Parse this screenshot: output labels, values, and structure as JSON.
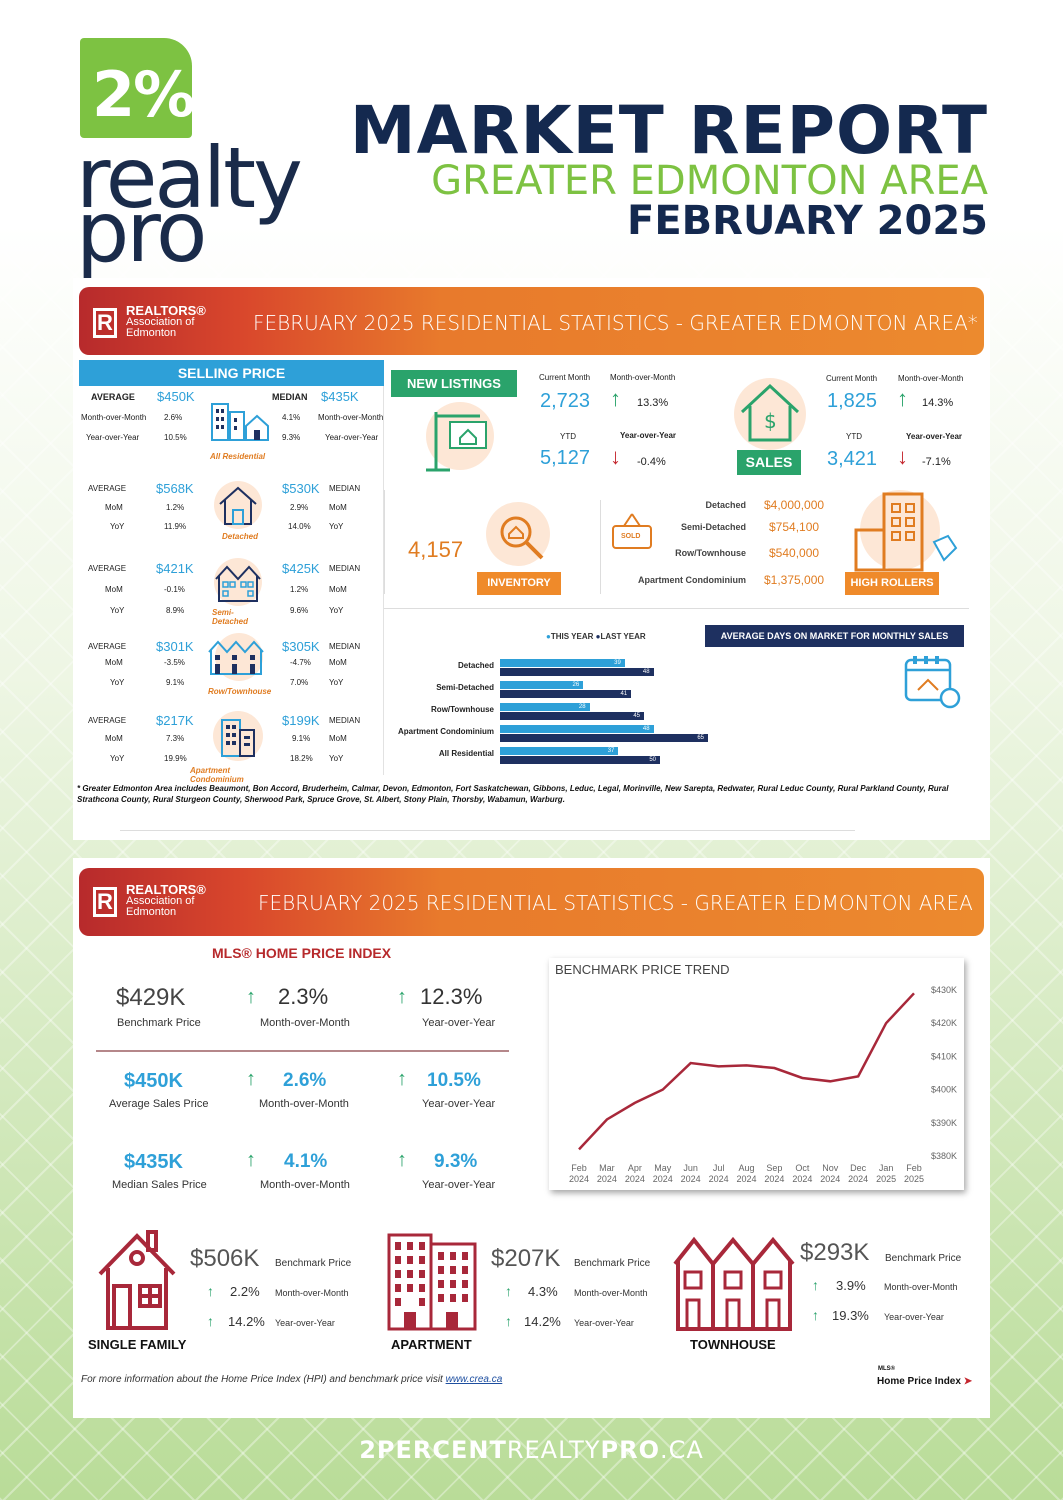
{
  "header": {
    "logo_pct": "2%",
    "logo_word1": "realty",
    "logo_word2": "pro",
    "title": "MARKET  REPORT",
    "subtitle": "GREATER EDMONTON AREA",
    "date": "FEBRUARY 2025"
  },
  "realtors": {
    "box": "R",
    "line1": "REALTORS®",
    "line2": "Association of",
    "line3": "Edmonton"
  },
  "panel1": {
    "banner": "FEBRUARY 2025 RESIDENTIAL STATISTICS - GREATER EDMONTON AREA*",
    "selling_price": "SELLING PRICE",
    "all_res": {
      "avg_lbl": "AVERAGE",
      "avg": "$450K",
      "med_lbl": "MEDIAN",
      "med": "$435K",
      "mom_lbl": "Month-over-Month",
      "yoy_lbl": "Year-over-Year",
      "avg_mom": "2.6%",
      "avg_yoy": "10.5%",
      "med_mom": "4.1%",
      "med_yoy": "9.3%",
      "caption": "All Residential"
    },
    "types": [
      {
        "avg": "$568K",
        "med": "$530K",
        "avg_mom": "1.2%",
        "avg_yoy": "11.9%",
        "med_mom": "2.9%",
        "med_yoy": "14.0%",
        "caption": "Detached"
      },
      {
        "avg": "$421K",
        "med": "$425K",
        "avg_mom": "-0.1%",
        "avg_yoy": "8.9%",
        "med_mom": "1.2%",
        "med_yoy": "9.6%",
        "caption": "Semi-Detached"
      },
      {
        "avg": "$301K",
        "med": "$305K",
        "avg_mom": "-3.5%",
        "avg_yoy": "9.1%",
        "med_mom": "-4.7%",
        "med_yoy": "7.0%",
        "caption": "Row/Townhouse"
      },
      {
        "avg": "$217K",
        "med": "$199K",
        "avg_mom": "7.3%",
        "avg_yoy": "19.9%",
        "med_mom": "9.1%",
        "med_yoy": "18.2%",
        "caption": "Apartment Condominium"
      }
    ],
    "avg_lbl": "AVERAGE",
    "med_lbl": "MEDIAN",
    "mom": "MoM",
    "yoy": "YoY",
    "new_listings": {
      "tag": "NEW  LISTINGS",
      "cur_lbl": "Current Month",
      "mom_lbl": "Month-over-Month",
      "cur": "2,723",
      "mom": "13.3%",
      "ytd_lbl": "YTD",
      "yoy_lbl": "Year-over-Year",
      "ytd": "5,127",
      "yoy": "-0.4%"
    },
    "sales": {
      "tag": "SALES",
      "cur_lbl": "Current Month",
      "mom_lbl": "Month-over-Month",
      "cur": "1,825",
      "mom": "14.3%",
      "ytd_lbl": "YTD",
      "yoy_lbl": "Year-over-Year",
      "ytd": "3,421",
      "yoy": "-7.1%"
    },
    "inventory": {
      "value": "4,157",
      "tag": "INVENTORY"
    },
    "sold_sign": "SOLD",
    "high_rollers": {
      "tag": "HIGH ROLLERS",
      "items": [
        {
          "label": "Detached",
          "value": "$4,000,000"
        },
        {
          "label": "Semi-Detached",
          "value": "$754,100"
        },
        {
          "label": "Row/Townhouse",
          "value": "$540,000"
        },
        {
          "label": "Apartment Condominium",
          "value": "$1,375,000"
        }
      ]
    },
    "footnote": "* Greater Edmonton Area includes Beaumont, Bon Accord, Bruderheim, Calmar, Devon, Edmonton, Fort Saskatchewan, Gibbons, Leduc, Legal, Morinville, New Sarepta, Redwater, Rural Leduc County, Rural Parkland County, Rural Strathcona County, Rural Sturgeon County, Sherwood Park, Spruce Grove, St. Albert, Stony Plain, Thorsby, Wabamun, Warburg."
  },
  "chart_data": [
    {
      "type": "bar",
      "title": "AVERAGE DAYS ON MARKET FOR MONTHLY SALES",
      "categories": [
        "Detached",
        "Semi-Detached",
        "Row/Townhouse",
        "Apartment Condominium",
        "All Residential"
      ],
      "series": [
        {
          "name": "THIS YEAR",
          "color": "#2ea0d8",
          "values": [
            39,
            26,
            28,
            48,
            37
          ]
        },
        {
          "name": "LAST YEAR",
          "color": "#1e3060",
          "values": [
            48,
            41,
            45,
            65,
            50
          ]
        }
      ],
      "xlim": [
        0,
        70
      ],
      "legend": "top"
    },
    {
      "type": "line",
      "title": "BENCHMARK PRICE TREND",
      "x": [
        "Feb 2024",
        "Mar 2024",
        "Apr 2024",
        "May 2024",
        "Jun 2024",
        "Jul 2024",
        "Aug 2024",
        "Sep 2024",
        "Oct 2024",
        "Nov 2024",
        "Dec 2024",
        "Jan 2025",
        "Feb 2025"
      ],
      "x_top": [
        "Feb",
        "Mar",
        "Apr",
        "May",
        "Jun",
        "Jul",
        "Aug",
        "Sep",
        "Oct",
        "Nov",
        "Dec",
        "Jan",
        "Feb"
      ],
      "x_bottom": [
        "2024",
        "2024",
        "2024",
        "2024",
        "2024",
        "2024",
        "2024",
        "2024",
        "2024",
        "2024",
        "2024",
        "2025",
        "2025"
      ],
      "values": [
        382,
        391,
        396,
        400,
        408,
        407,
        407.3,
        406.5,
        403.5,
        402.5,
        404,
        420,
        429
      ],
      "ylim": [
        380,
        430
      ],
      "yticks": [
        380,
        390,
        400,
        410,
        420,
        430
      ],
      "ytick_labels": [
        "$380K",
        "$390K",
        "$400K",
        "$410K",
        "$420K",
        "$430K"
      ],
      "color": "#a8283a"
    }
  ],
  "panel2": {
    "banner": "FEBRUARY 2025 RESIDENTIAL STATISTICS - GREATER EDMONTON AREA",
    "hpi_title": "MLS® HOME PRICE INDEX",
    "rows": [
      {
        "value": "$429K",
        "label": "Benchmark Price",
        "mom": "2.3%",
        "mom_lbl": "Month-over-Month",
        "yoy": "12.3%",
        "yoy_lbl": "Year-over-Year"
      },
      {
        "value": "$450K",
        "label": "Average Sales Price",
        "mom": "2.6%",
        "mom_lbl": "Month-over-Month",
        "yoy": "10.5%",
        "yoy_lbl": "Year-over-Year"
      },
      {
        "value": "$435K",
        "label": "Median Sales Price",
        "mom": "4.1%",
        "mom_lbl": "Month-over-Month",
        "yoy": "9.3%",
        "yoy_lbl": "Year-over-Year"
      }
    ],
    "bottom": [
      {
        "value": "$506K",
        "bp": "Benchmark Price",
        "mom": "2.2%",
        "mom_lbl": "Month-over-Month",
        "yoy": "14.2%",
        "yoy_lbl": "Year-over-Year",
        "caption": "SINGLE FAMILY"
      },
      {
        "value": "$207K",
        "bp": "Benchmark Price",
        "mom": "4.3%",
        "mom_lbl": "Month-over-Month",
        "yoy": "14.2%",
        "yoy_lbl": "Year-over-Year",
        "caption": "APARTMENT"
      },
      {
        "value": "$293K",
        "bp": "Benchmark Price",
        "mom": "3.9%",
        "mom_lbl": "Month-over-Month",
        "yoy": "19.3%",
        "yoy_lbl": "Year-over-Year",
        "caption": "TOWNHOUSE"
      }
    ],
    "info": "For more information about the Home Price Index (HPI) and benchmark price visit ",
    "info_link": "www.crea.ca",
    "mls_small": "MLS®",
    "mls_big": "Home Price Index"
  },
  "footer": {
    "a": "2PERCENT",
    "b": "REALTY",
    "c": "PRO",
    ".ca": ".CA"
  }
}
